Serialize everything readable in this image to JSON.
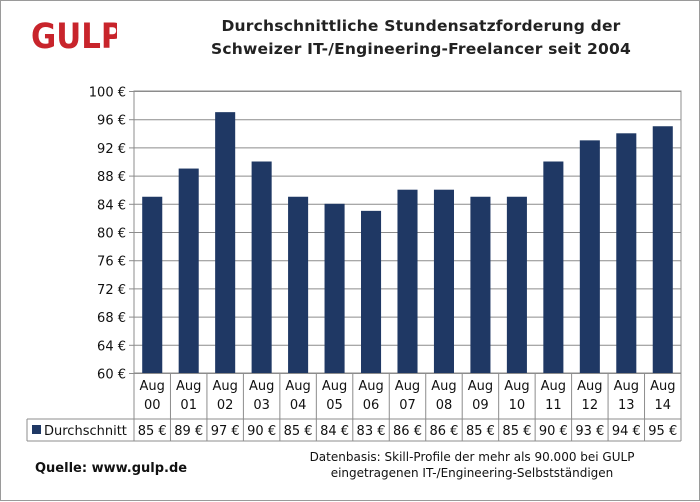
{
  "logo": {
    "text": "GULP",
    "color": "#c8242b"
  },
  "title": {
    "line1": "Durchschnittliche Stundensatzforderung der",
    "line2": "Schweizer IT-/Engineering-Freelancer  seit 2004"
  },
  "chart_data": {
    "type": "bar",
    "categories": [
      [
        "Aug",
        "00"
      ],
      [
        "Aug",
        "01"
      ],
      [
        "Aug",
        "02"
      ],
      [
        "Aug",
        "03"
      ],
      [
        "Aug",
        "04"
      ],
      [
        "Aug",
        "05"
      ],
      [
        "Aug",
        "06"
      ],
      [
        "Aug",
        "07"
      ],
      [
        "Aug",
        "08"
      ],
      [
        "Aug",
        "09"
      ],
      [
        "Aug",
        "10"
      ],
      [
        "Aug",
        "11"
      ],
      [
        "Aug",
        "12"
      ],
      [
        "Aug",
        "13"
      ],
      [
        "Aug",
        "14"
      ]
    ],
    "series": [
      {
        "name": "Durchschnitt",
        "values": [
          85,
          89,
          97,
          90,
          85,
          84,
          83,
          86,
          86,
          85,
          85,
          90,
          93,
          94,
          95
        ],
        "labels": [
          "85 €",
          "89 €",
          "97 €",
          "90 €",
          "85 €",
          "84 €",
          "83 €",
          "86 €",
          "86 €",
          "85 €",
          "85 €",
          "90 €",
          "93 €",
          "94 €",
          "95 €"
        ],
        "color": "#1f3864"
      }
    ],
    "ylim": [
      60,
      100
    ],
    "yticks": [
      "60 €",
      "64 €",
      "68 €",
      "72 €",
      "76 €",
      "80 €",
      "84 €",
      "88 €",
      "92 €",
      "96 €",
      "100 €"
    ],
    "grid": true,
    "legend": "data-table"
  },
  "footer": {
    "source": "Quelle: www.gulp.de",
    "database_line1": "Datenbasis: Skill-Profile der mehr als 90.000 bei GULP",
    "database_line2": "eingetragenen IT-/Engineering-Selbstständigen"
  }
}
